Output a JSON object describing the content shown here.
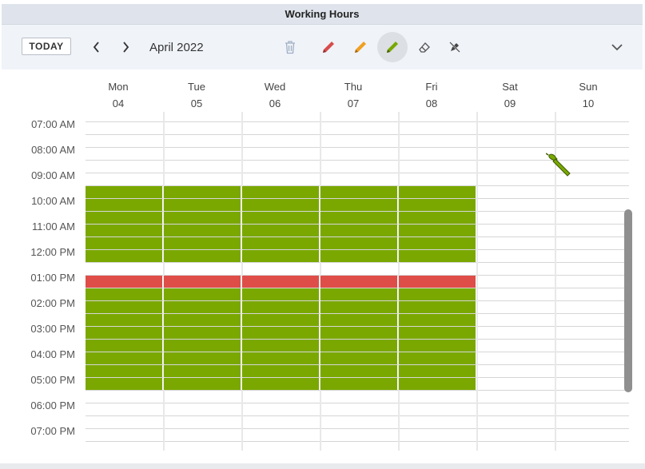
{
  "title": "Working Hours",
  "toolbar": {
    "today_label": "TODAY",
    "prev_icon": "chevron-left-icon",
    "next_icon": "chevron-right-icon",
    "month_label": "April 2022",
    "tools": [
      {
        "name": "trash-icon",
        "color": "#9fb0c4",
        "active": false
      },
      {
        "name": "pencil-red-icon",
        "color": "#d84c4c",
        "active": false
      },
      {
        "name": "pencil-orange-icon",
        "color": "#f0a020",
        "active": false
      },
      {
        "name": "pencil-green-icon",
        "color": "#78a800",
        "active": true
      },
      {
        "name": "eraser-icon",
        "color": "#555555",
        "active": false
      },
      {
        "name": "no-paint-icon",
        "color": "#444444",
        "active": false
      }
    ],
    "collapse_icon": "chevron-down-icon"
  },
  "days": [
    {
      "name": "Mon",
      "num": "04"
    },
    {
      "name": "Tue",
      "num": "05"
    },
    {
      "name": "Wed",
      "num": "06"
    },
    {
      "name": "Thu",
      "num": "07"
    },
    {
      "name": "Fri",
      "num": "08"
    },
    {
      "name": "Sat",
      "num": "09"
    },
    {
      "name": "Sun",
      "num": "10"
    }
  ],
  "times": [
    "07:00 AM",
    "08:00 AM",
    "09:00 AM",
    "10:00 AM",
    "11:00 AM",
    "12:00 PM",
    "01:00 PM",
    "02:00 PM",
    "03:00 PM",
    "04:00 PM",
    "05:00 PM",
    "06:00 PM",
    "07:00 PM"
  ],
  "colors": {
    "working": "#7aa800",
    "break": "#df4d48",
    "accent_green": "#78a800"
  },
  "schedule": [
    {
      "days": [
        "Mon",
        "Tue",
        "Wed",
        "Thu",
        "Fri"
      ],
      "start": "09:00",
      "end": "12:00",
      "type": "working"
    },
    {
      "days": [
        "Mon",
        "Tue",
        "Wed",
        "Thu",
        "Fri"
      ],
      "start": "12:30",
      "end": "13:00",
      "type": "break"
    },
    {
      "days": [
        "Mon",
        "Tue",
        "Wed",
        "Thu",
        "Fri"
      ],
      "start": "13:00",
      "end": "17:00",
      "type": "working"
    }
  ],
  "cursor_icon": "paintbrush-icon"
}
